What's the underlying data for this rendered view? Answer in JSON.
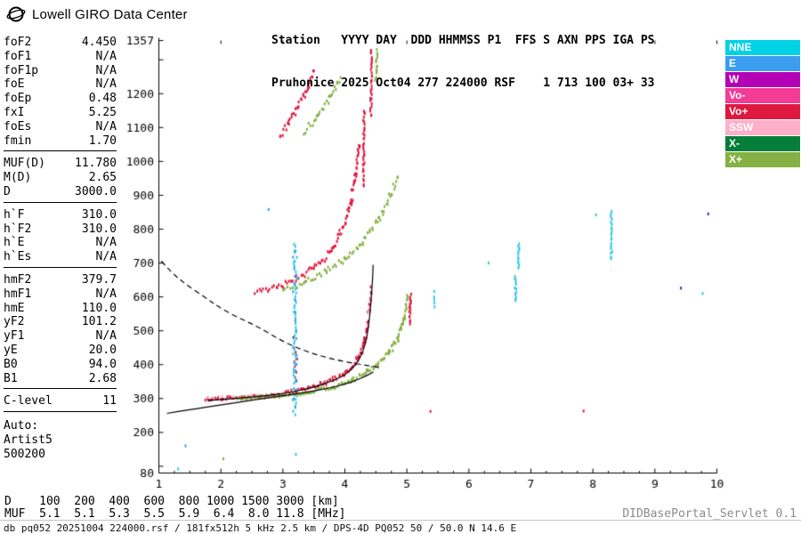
{
  "header": {
    "brand": "Lowell GIRO Data Center",
    "station_line1": "Station   YYYY DAY  DDD HHMMSS P1  FFS S AXN PPS IGA PS",
    "station_line2": "Pruhonice 2025 Oct04 277 224000 RSF    1 713 100 03+ 33"
  },
  "params": {
    "groups": [
      {
        "rows": [
          [
            "foF2",
            "4.450"
          ],
          [
            "foF1",
            "N/A"
          ],
          [
            "foF1p",
            "N/A"
          ],
          [
            "foE",
            "N/A"
          ],
          [
            "foEp",
            "0.48"
          ],
          [
            "fxI",
            "5.25"
          ],
          [
            "foEs",
            "N/A"
          ],
          [
            "fmin",
            "1.70"
          ]
        ]
      },
      {
        "rows": [
          [
            "MUF(D)",
            "11.780"
          ],
          [
            "M(D)",
            "2.65"
          ],
          [
            "D",
            "3000.0"
          ]
        ]
      },
      {
        "rows": [
          [
            "h`F",
            "310.0"
          ],
          [
            "h`F2",
            "310.0"
          ],
          [
            "h`E",
            "N/A"
          ],
          [
            "h`Es",
            "N/A"
          ]
        ]
      },
      {
        "rows": [
          [
            "hmF2",
            "379.7"
          ],
          [
            "hmF1",
            "N/A"
          ],
          [
            "hmE",
            "110.0"
          ],
          [
            "yF2",
            "101.2"
          ],
          [
            "yF1",
            "N/A"
          ],
          [
            "yE",
            "20.0"
          ],
          [
            "B0",
            "94.0"
          ],
          [
            "B1",
            "2.68"
          ]
        ]
      },
      {
        "rows": [
          [
            "C-level",
            "11"
          ]
        ]
      }
    ],
    "auto_label": "Auto:",
    "auto_lines": [
      "Artist5",
      "500200"
    ]
  },
  "legend": [
    {
      "label": "NNE",
      "color": "#00d2e6"
    },
    {
      "label": "E",
      "color": "#3a9df0"
    },
    {
      "label": "W",
      "color": "#b400b4"
    },
    {
      "label": "Vo-",
      "color": "#f23c96"
    },
    {
      "label": "Vo+",
      "color": "#df1840"
    },
    {
      "label": "SSW",
      "color": "#ffb0c8"
    },
    {
      "label": "X-",
      "color": "#067d38"
    },
    {
      "label": "X+",
      "color": "#85b043"
    }
  ],
  "footer": {
    "d_line": "D    100  200  400  600  800 1000 1500 3000 [km]",
    "muf_line": "MUF  5.1  5.1  5.3  5.5  5.9  6.4  8.0 11.8 [MHz]",
    "info_line": "db pq052 20251004 224000.rsf / 181fx512h 5 kHz 2.5 km / DPS-4D PQ052 50 / 50.0 N 14.6 E",
    "servlet": "DIDBasePortal_Servlet 0.1"
  },
  "chart_data": {
    "type": "scatter",
    "title": "Pruhonice ionogram 2025 Oct04 224000",
    "xlabel": "[MHz]",
    "ylabel": "[km]",
    "x_range": [
      1,
      10
    ],
    "y_range": [
      80,
      1357
    ],
    "x_ticks": [
      1,
      2,
      3,
      4,
      5,
      6,
      7,
      8,
      9,
      10
    ],
    "y_ticks": [
      80,
      200,
      300,
      400,
      500,
      600,
      700,
      800,
      900,
      1000,
      1100,
      1200,
      1357
    ],
    "series": [
      {
        "name": "o-mode-1st-hop",
        "color": "#df1840",
        "step": 2,
        "pts": [
          [
            1.75,
            298,
            6
          ],
          [
            2.1,
            301,
            5
          ],
          [
            2.5,
            304,
            5
          ],
          [
            2.9,
            310,
            6
          ],
          [
            3.2,
            322,
            7
          ],
          [
            3.5,
            335,
            8
          ],
          [
            3.8,
            355,
            9
          ],
          [
            4.0,
            373,
            10
          ],
          [
            4.12,
            393,
            12
          ],
          [
            4.22,
            420,
            14
          ],
          [
            4.3,
            455,
            17
          ],
          [
            4.35,
            498,
            20
          ],
          [
            4.39,
            552,
            24
          ],
          [
            4.42,
            615,
            28
          ]
        ]
      },
      {
        "name": "o-mode-2nd-hop",
        "color": "#df1840",
        "step": 2.6,
        "pts": [
          [
            2.55,
            612,
            9
          ],
          [
            2.9,
            628,
            9
          ],
          [
            3.2,
            652,
            10
          ],
          [
            3.5,
            684,
            11
          ],
          [
            3.8,
            740,
            13
          ],
          [
            4.0,
            815,
            17
          ],
          [
            4.1,
            882,
            22
          ],
          [
            4.17,
            962,
            28
          ],
          [
            4.23,
            1060,
            40
          ]
        ]
      },
      {
        "name": "o-mode-2nd-asymptote",
        "color": "#df1840",
        "step": 2.6,
        "pts": [
          [
            4.3,
            930,
            8
          ],
          [
            4.31,
            1150,
            8
          ]
        ]
      },
      {
        "name": "o-mode-3rd-hop",
        "color": "#df1840",
        "step": 2.8,
        "pts": [
          [
            2.95,
            1075,
            14
          ],
          [
            3.1,
            1112,
            14
          ],
          [
            3.25,
            1162,
            15
          ],
          [
            3.4,
            1218,
            16
          ],
          [
            3.5,
            1268,
            16
          ]
        ]
      },
      {
        "name": "o-mode-3rd-asymptote",
        "color": "#df1840",
        "step": 2.6,
        "pts": [
          [
            4.42,
            1135,
            7
          ],
          [
            4.43,
            1330,
            7
          ]
        ]
      },
      {
        "name": "o-spread-3.2",
        "color": "#df1840",
        "step": 6.5,
        "jx": 1.6,
        "pts": [
          [
            3.2,
            345,
            10
          ],
          [
            3.21,
            435,
            10
          ]
        ]
      },
      {
        "name": "red-streak-fxI",
        "color": "#df1840",
        "step": 2.4,
        "pts": [
          [
            5.04,
            518,
            6
          ],
          [
            5.06,
            608,
            6
          ]
        ]
      },
      {
        "name": "x-mode-1st-hop",
        "color": "#85b043",
        "step": 2.1,
        "pts": [
          [
            2.25,
            300,
            5
          ],
          [
            2.6,
            303,
            5
          ],
          [
            3.0,
            308,
            6
          ],
          [
            3.4,
            317,
            7
          ],
          [
            3.8,
            333,
            8
          ],
          [
            4.1,
            352,
            9
          ],
          [
            4.35,
            376,
            10
          ],
          [
            4.55,
            403,
            12
          ],
          [
            4.72,
            440,
            14
          ],
          [
            4.85,
            482,
            17
          ],
          [
            4.95,
            537,
            21
          ],
          [
            5.02,
            605,
            27
          ]
        ]
      },
      {
        "name": "x-mode-2nd-hop",
        "color": "#85b043",
        "step": 3,
        "pts": [
          [
            3.0,
            618,
            9
          ],
          [
            3.35,
            643,
            10
          ],
          [
            3.7,
            676,
            11
          ],
          [
            4.0,
            712,
            12
          ],
          [
            4.3,
            766,
            14
          ],
          [
            4.55,
            832,
            17
          ],
          [
            4.72,
            892,
            21
          ],
          [
            4.85,
            958,
            25
          ]
        ]
      },
      {
        "name": "x-mode-3rd-hop",
        "color": "#85b043",
        "step": 3.2,
        "pts": [
          [
            3.35,
            1085,
            13
          ],
          [
            3.55,
            1132,
            13
          ],
          [
            3.75,
            1188,
            14
          ],
          [
            3.92,
            1248,
            15
          ]
        ]
      },
      {
        "name": "x-mode-3rd-asymptote",
        "color": "#85b043",
        "step": 3,
        "pts": [
          [
            4.5,
            1235,
            7
          ],
          [
            4.52,
            1330,
            7
          ]
        ]
      },
      {
        "name": "interference-column-cyan",
        "color": "#2fc8e6",
        "step": 3.6,
        "jx": 2.2,
        "pts": [
          [
            3.19,
            255,
            6
          ],
          [
            3.2,
            755,
            6
          ]
        ]
      },
      {
        "name": "interference-column-blue",
        "color": "#3a9df0",
        "step": 10,
        "jx": 2.5,
        "pts": [
          [
            3.19,
            270,
            8
          ],
          [
            3.2,
            740,
            8
          ]
        ]
      },
      {
        "name": "rfi-bar-6.75",
        "color": "#2fc8e6",
        "step": 2.6,
        "pts": [
          [
            6.75,
            588,
            3
          ],
          [
            6.75,
            662,
            3
          ]
        ]
      },
      {
        "name": "rfi-bar-6.80",
        "color": "#2fc8e6",
        "step": 2.6,
        "pts": [
          [
            6.8,
            684,
            3
          ],
          [
            6.8,
            758,
            3
          ]
        ]
      },
      {
        "name": "rfi-line-8.3",
        "color": "#2fc8e6",
        "step": 3,
        "pts": [
          [
            8.3,
            712,
            3
          ],
          [
            8.3,
            852,
            3
          ]
        ]
      },
      {
        "name": "rfi-bits-5.45",
        "color": "#2fc8e6",
        "step": 4.5,
        "pts": [
          [
            5.44,
            570,
            5
          ],
          [
            5.44,
            614,
            5
          ]
        ]
      },
      {
        "name": "sprinkle-pink",
        "color": "#ffb0c8",
        "step": 7,
        "jx": 1.5,
        "pts": [
          [
            1.8,
            303,
            10
          ],
          [
            2.5,
            306,
            9
          ],
          [
            3.0,
            314,
            9
          ]
        ]
      },
      {
        "name": "sprinkle-pink-2",
        "color": "#ffb0c8",
        "step": 6,
        "pts": [
          [
            4.36,
            500,
            30
          ],
          [
            4.42,
            600,
            30
          ]
        ]
      }
    ],
    "noise_dots": [
      [
        1.31,
        92,
        "#2fc8e6"
      ],
      [
        1.43,
        160,
        "#3a9df0"
      ],
      [
        2.04,
        122,
        "#85b043"
      ],
      [
        3.21,
        135,
        "#2fc8e6"
      ],
      [
        3.17,
        480,
        "#44484c"
      ],
      [
        5.38,
        262,
        "#df1840"
      ],
      [
        7.85,
        263,
        "#df1840"
      ],
      [
        9.42,
        626,
        "#2038c0"
      ],
      [
        9.86,
        845,
        "#2038c0"
      ],
      [
        9.77,
        610,
        "#2fc8e6"
      ],
      [
        2.77,
        858,
        "#3a9df0"
      ],
      [
        8.05,
        842,
        "#2fc8e6"
      ],
      [
        6.32,
        700,
        "#2fc8e6"
      ]
    ],
    "curves": [
      {
        "name": "true-height-profile",
        "style": "solid",
        "pts": [
          [
            1.13,
            256
          ],
          [
            1.5,
            267
          ],
          [
            2.0,
            281
          ],
          [
            2.5,
            295
          ],
          [
            3.0,
            308
          ],
          [
            3.4,
            319
          ],
          [
            3.7,
            329
          ],
          [
            4.0,
            342
          ],
          [
            4.2,
            355
          ],
          [
            4.33,
            366
          ],
          [
            4.42,
            374
          ],
          [
            4.46,
            379
          ]
        ]
      },
      {
        "name": "fitted-o-trace",
        "style": "solid",
        "pts": [
          [
            1.78,
            294
          ],
          [
            2.2,
            300
          ],
          [
            2.7,
            307
          ],
          [
            3.1,
            317
          ],
          [
            3.5,
            333
          ],
          [
            3.8,
            352
          ],
          [
            4.0,
            369
          ],
          [
            4.12,
            388
          ],
          [
            4.22,
            412
          ],
          [
            4.3,
            442
          ],
          [
            4.36,
            485
          ],
          [
            4.4,
            540
          ],
          [
            4.43,
            605
          ],
          [
            4.45,
            663
          ],
          [
            4.455,
            695
          ]
        ]
      },
      {
        "name": "transmission-curve",
        "style": "dashed",
        "pts": [
          [
            1.04,
            706
          ],
          [
            1.2,
            672
          ],
          [
            1.45,
            635
          ],
          [
            1.75,
            598
          ],
          [
            2.0,
            566
          ],
          [
            2.3,
            537
          ],
          [
            2.6,
            512
          ],
          [
            3.0,
            468
          ],
          [
            3.4,
            437
          ],
          [
            3.8,
            416
          ],
          [
            4.2,
            402
          ],
          [
            4.55,
            392
          ]
        ]
      }
    ]
  }
}
